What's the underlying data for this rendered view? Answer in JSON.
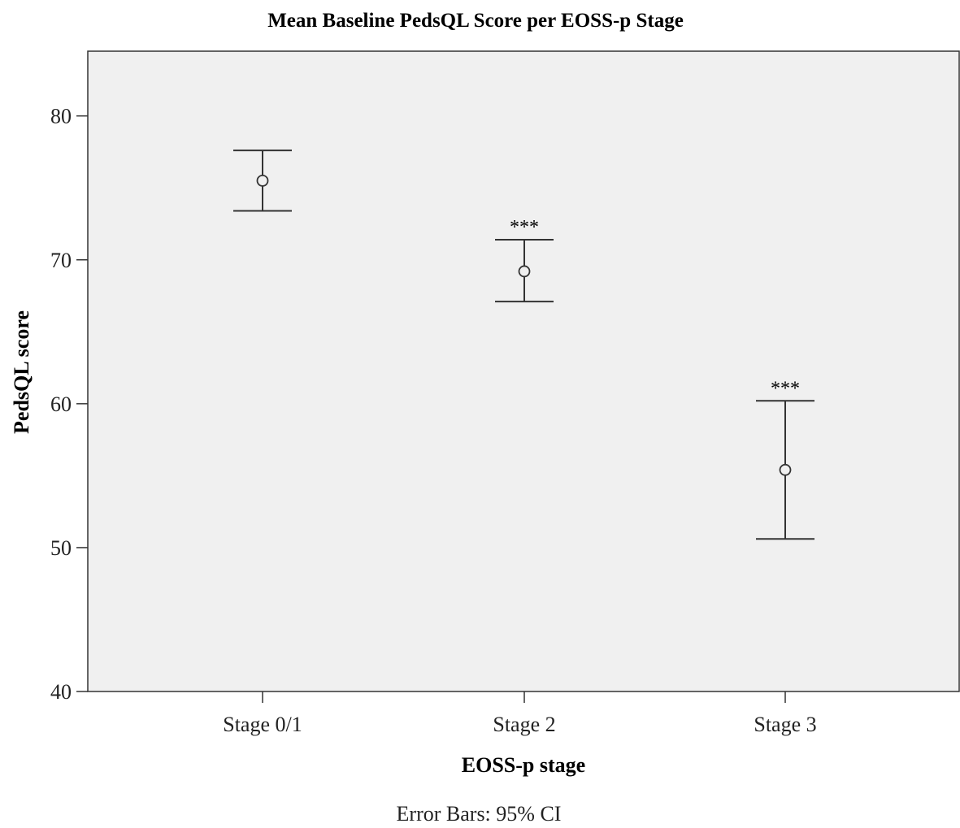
{
  "chart_data": {
    "type": "scatter",
    "title": "Mean Baseline PedsQL Score per EOSS-p Stage",
    "xlabel": "EOSS-p stage",
    "ylabel": "PedsQL score",
    "ylim": [
      40,
      84.5
    ],
    "yticks": [
      40,
      50,
      60,
      70,
      80
    ],
    "categories": [
      "Stage 0/1",
      "Stage 2",
      "Stage 3"
    ],
    "means": [
      75.5,
      69.2,
      55.4
    ],
    "ci_low": [
      73.4,
      67.1,
      50.6
    ],
    "ci_high": [
      77.6,
      71.4,
      60.2
    ],
    "annotations": [
      "",
      "***",
      "***"
    ],
    "footnote": "Error Bars: 95% CI",
    "grid": false,
    "legend": "none",
    "plot_background": "#f0f0f0",
    "line_color": "#333333"
  }
}
